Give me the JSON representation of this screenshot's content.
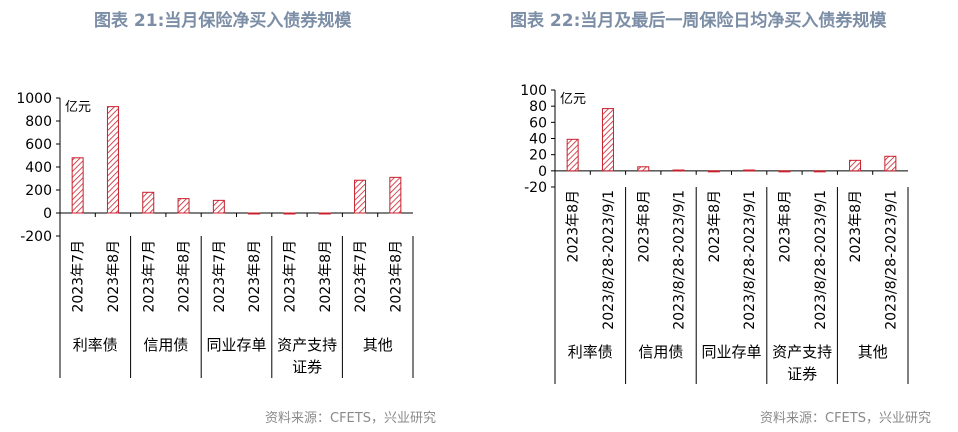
{
  "titles": {
    "left": "图表 21:当月保险净买入债券规模",
    "right": "图表 22:当月及最后一周保险日均净买入债券规模"
  },
  "sources": {
    "left": "资料来源：CFETS，兴业研究",
    "right": "资料来源：CFETS，兴业研究"
  },
  "colors": {
    "bar_stroke": "#c8202c",
    "title": "#7c8ea6"
  },
  "chart_data": [
    {
      "type": "bar",
      "title": "图表 21:当月保险净买入债券规模",
      "ylabel": "亿元",
      "ylim": [
        -200,
        1000
      ],
      "yticks": [
        -200,
        0,
        200,
        400,
        600,
        800,
        1000
      ],
      "categories": [
        "2023年7月",
        "2023年8月",
        "2023年7月",
        "2023年8月",
        "2023年7月",
        "2023年8月",
        "2023年7月",
        "2023年8月",
        "2023年7月",
        "2023年8月"
      ],
      "groups": [
        "利率债",
        "信用债",
        "同业存单",
        "资产支持\n证券",
        "其他"
      ],
      "values": [
        480,
        925,
        180,
        125,
        110,
        -5,
        -5,
        -5,
        285,
        310
      ],
      "grid": false
    },
    {
      "type": "bar",
      "title": "图表 22:当月及最后一周保险日均净买入债券规模",
      "ylabel": "亿元",
      "ylim": [
        -20,
        100
      ],
      "yticks": [
        -20,
        0,
        20,
        40,
        60,
        80,
        100
      ],
      "categories": [
        "2023年8月",
        "2023/8/28-2023/9/1",
        "2023年8月",
        "2023/8/28-2023/9/1",
        "2023年8月",
        "2023/8/28-2023/9/1",
        "2023年8月",
        "2023/8/28-2023/9/1",
        "2023年8月",
        "2023/8/28-2023/9/1"
      ],
      "groups": [
        "利率债",
        "信用债",
        "同业存单",
        "资产支持\n证券",
        "其他"
      ],
      "values": [
        39,
        77,
        5,
        1,
        -1,
        1,
        -1,
        0,
        13,
        18
      ],
      "grid": false
    }
  ]
}
